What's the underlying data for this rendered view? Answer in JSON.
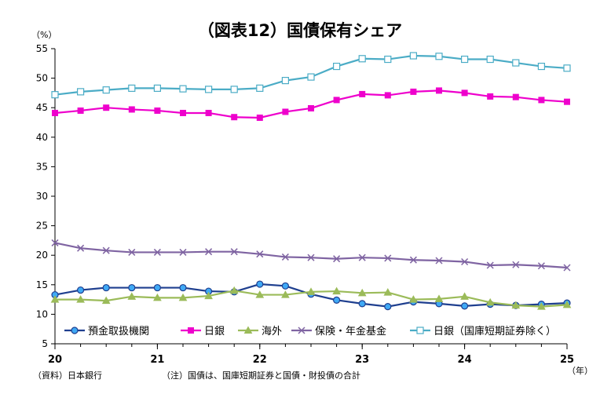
{
  "chart_data": {
    "type": "line",
    "title": "（図表12）国債保有シェア",
    "y_unit": "（%）",
    "x_unit": "（年）",
    "ylim": [
      5,
      55
    ],
    "yticks": [
      5,
      10,
      15,
      20,
      25,
      30,
      35,
      40,
      45,
      50,
      55
    ],
    "x_tick_labels": [
      "20",
      "21",
      "22",
      "23",
      "24",
      "25"
    ],
    "x_tick_positions": [
      0,
      4,
      8,
      12,
      16,
      20
    ],
    "grid": false,
    "legend_position": "bottom-inside",
    "x": [
      0,
      1,
      2,
      3,
      4,
      5,
      6,
      7,
      8,
      9,
      10,
      11,
      12,
      13,
      14,
      15,
      16,
      17,
      18,
      19,
      20
    ],
    "series": [
      {
        "name": "預金取扱機関",
        "color": "#1f3f8f",
        "marker": "circle",
        "marker_fill": "#3fa9f5",
        "values": [
          13.3,
          14.1,
          14.5,
          14.5,
          14.5,
          14.5,
          13.9,
          13.8,
          15.1,
          14.8,
          13.4,
          12.4,
          11.8,
          11.3,
          12.1,
          11.8,
          11.4,
          11.7,
          11.5,
          11.7,
          11.9
        ]
      },
      {
        "name": "日銀",
        "color": "#ee00cc",
        "marker": "square",
        "marker_fill": "#ee00cc",
        "values": [
          44.1,
          44.5,
          45.0,
          44.7,
          44.5,
          44.1,
          44.1,
          43.4,
          43.3,
          44.3,
          44.9,
          46.3,
          47.3,
          47.1,
          47.7,
          47.9,
          47.5,
          46.9,
          46.8,
          46.3,
          46.0
        ]
      },
      {
        "name": "海外",
        "color": "#9bbb59",
        "marker": "triangle",
        "marker_fill": "#9bbb59",
        "values": [
          12.5,
          12.5,
          12.3,
          13.0,
          12.8,
          12.8,
          13.1,
          14.0,
          13.3,
          13.3,
          13.8,
          13.9,
          13.6,
          13.7,
          12.5,
          12.6,
          13.0,
          12.0,
          11.5,
          11.3,
          11.6
        ]
      },
      {
        "name": "保険・年金基金",
        "color": "#7f64a2",
        "marker": "x",
        "marker_fill": "#7f64a2",
        "values": [
          22.1,
          21.2,
          20.8,
          20.5,
          20.5,
          20.5,
          20.6,
          20.6,
          20.2,
          19.7,
          19.6,
          19.4,
          19.6,
          19.5,
          19.2,
          19.1,
          18.9,
          18.3,
          18.4,
          18.2,
          17.9
        ]
      },
      {
        "name": "日銀（国庫短期証券除く）",
        "color": "#4bacc6",
        "marker": "square-open",
        "marker_fill": "#ffffff",
        "values": [
          47.2,
          47.7,
          48.0,
          48.3,
          48.3,
          48.2,
          48.1,
          48.1,
          48.3,
          49.6,
          50.2,
          52.0,
          53.3,
          53.2,
          53.8,
          53.7,
          53.2,
          53.2,
          52.6,
          52.0,
          51.7
        ]
      }
    ]
  },
  "footer": {
    "source": "（資料）日本銀行",
    "note": "（注）国債は、国庫短期証券と国債・財投債の合計"
  }
}
